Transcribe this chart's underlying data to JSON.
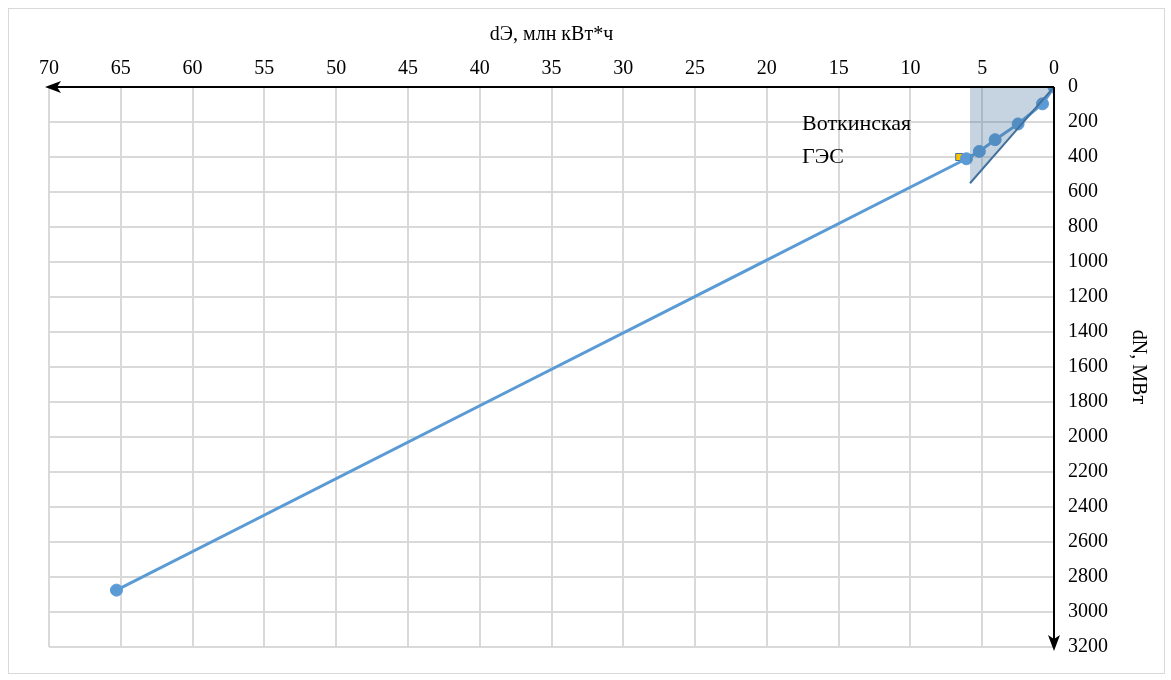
{
  "chart_data": {
    "type": "line",
    "xlabel": "dЭ, млн кВт*ч",
    "ylabel": "dN, МВт",
    "xlim": [
      70,
      0
    ],
    "xticks": [
      0,
      5,
      10,
      15,
      20,
      25,
      30,
      35,
      40,
      45,
      50,
      55,
      60,
      65,
      70
    ],
    "ylim": [
      3200,
      0
    ],
    "yticks": [
      0,
      200,
      400,
      600,
      800,
      1000,
      1200,
      1400,
      1600,
      1800,
      2000,
      2200,
      2400,
      2600,
      2800,
      3000,
      3200
    ],
    "grid": true,
    "legend": false,
    "series": [
      {
        "type": "area",
        "color": "#41719c",
        "marker": "none",
        "x": [
          5.85,
          0
        ],
        "values": [
          550,
          0
        ]
      },
      {
        "type": "line",
        "color": "#5b9bd5",
        "marker": "circle",
        "x": [
          0,
          0.8,
          2.5,
          4.1,
          5.2,
          6.1,
          65.3
        ],
        "values": [
          0,
          96,
          211,
          301,
          368,
          410,
          2875
        ]
      },
      {
        "type": "scatter",
        "color": "#ffc000",
        "marker": "square",
        "x": [
          6.6
        ],
        "values": [
          400
        ]
      }
    ],
    "annotations": [
      {
        "text": "Воткинская ГЭС",
        "x": 6.6,
        "y": 400
      }
    ]
  }
}
